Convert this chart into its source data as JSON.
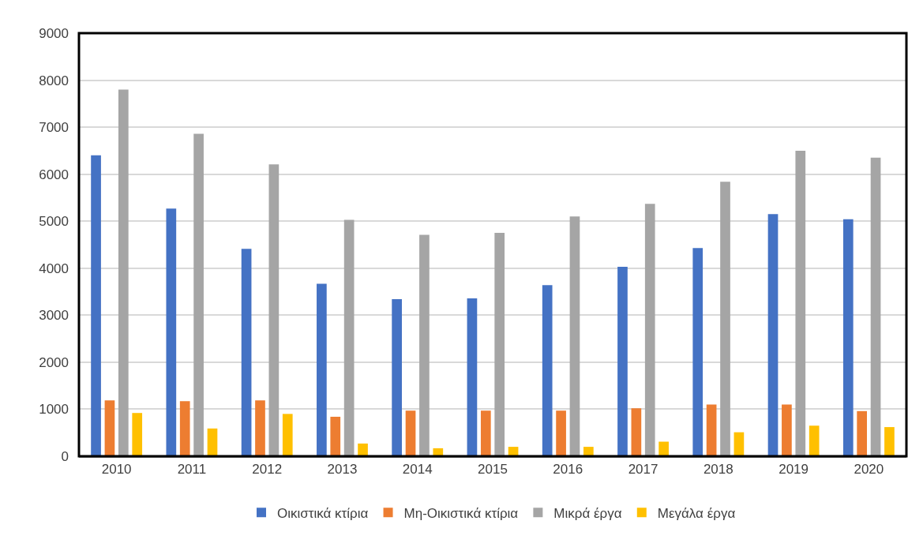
{
  "chart_data": {
    "type": "bar",
    "categories": [
      "2010",
      "2011",
      "2012",
      "2013",
      "2014",
      "2015",
      "2016",
      "2017",
      "2018",
      "2019",
      "2020"
    ],
    "series": [
      {
        "name": "Οικιστικά κτίρια",
        "color": "#4472c4",
        "values": [
          6400,
          5270,
          4410,
          3670,
          3340,
          3360,
          3640,
          4030,
          4430,
          5150,
          5040
        ]
      },
      {
        "name": "Μη-Οικιστικά κτίρια",
        "color": "#ed7d31",
        "values": [
          1190,
          1170,
          1190,
          840,
          970,
          970,
          970,
          1020,
          1100,
          1100,
          960
        ]
      },
      {
        "name": "Μικρά έργα",
        "color": "#a5a5a5",
        "values": [
          7800,
          6860,
          6210,
          5030,
          4710,
          4750,
          5100,
          5370,
          5840,
          6500,
          6350
        ]
      },
      {
        "name": "Μεγάλα έργα",
        "color": "#ffc000",
        "values": [
          920,
          590,
          900,
          270,
          170,
          200,
          200,
          310,
          510,
          650,
          620
        ]
      }
    ],
    "ylim": [
      0,
      9000
    ],
    "yticks": [
      0,
      1000,
      2000,
      3000,
      4000,
      5000,
      6000,
      7000,
      8000,
      9000
    ],
    "grid": "y",
    "legend": "bottom"
  }
}
